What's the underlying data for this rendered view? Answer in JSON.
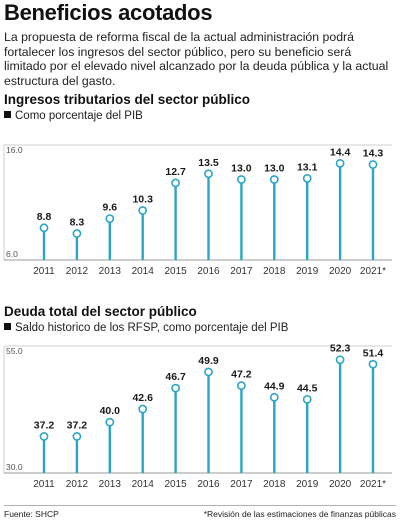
{
  "title": "Beneficios acotados",
  "intro": "La propuesta de reforma fiscal de la actual administración podrá fortalecer los ingresos del sector público, pero su beneficio será limitado por el elevado nivel alcanzado por la deuda pública y la actual estructura del gasto.",
  "colors": {
    "accent": "#2aa6c4",
    "text": "#1a1a1a",
    "grid": "#cfcfcf"
  },
  "footer": {
    "source": "Fuente: SHCP",
    "note": "*Revisión de las estimaciones de finanzas públicas"
  },
  "chart_data": [
    {
      "type": "lollipop",
      "title": "Ingresos tributarios del sector público",
      "subtitle": "Como porcentaje del PIB",
      "categories": [
        "2011",
        "2012",
        "2013",
        "2014",
        "2015",
        "2016",
        "2017",
        "2018",
        "2019",
        "2020",
        "2021*"
      ],
      "values": [
        8.8,
        8.3,
        9.6,
        10.3,
        12.7,
        13.5,
        13.0,
        13.0,
        13.1,
        14.4,
        14.3
      ],
      "value_labels": [
        "8.8",
        "8.3",
        "9.6",
        "10.3",
        "12.7",
        "13.5",
        "13.0",
        "13.0",
        "13.1",
        "14.4",
        "14.3"
      ],
      "ylim": [
        6.0,
        16.0
      ],
      "ytick_labels": [
        "16.0",
        "6.0"
      ],
      "grid": false
    },
    {
      "type": "lollipop",
      "title": "Deuda total del sector público",
      "subtitle": "Saldo historico de los RFSP, como porcentaje del PIB",
      "categories": [
        "2011",
        "2012",
        "2013",
        "2014",
        "2015",
        "2016",
        "2017",
        "2018",
        "2019",
        "2020",
        "2021*"
      ],
      "values": [
        37.2,
        37.2,
        40.0,
        42.6,
        46.7,
        49.9,
        47.2,
        44.9,
        44.5,
        52.3,
        51.4
      ],
      "value_labels": [
        "37.2",
        "37.2",
        "40.0",
        "42.6",
        "46.7",
        "49.9",
        "47.2",
        "44.9",
        "44.5",
        "52.3",
        "51.4"
      ],
      "ylim": [
        30.0,
        55.0
      ],
      "ytick_labels": [
        "55.0",
        "30.0"
      ],
      "grid": false
    }
  ]
}
